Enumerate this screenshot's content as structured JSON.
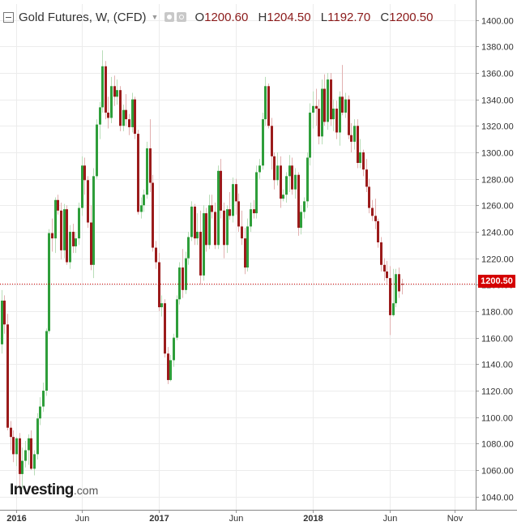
{
  "header": {
    "title": "Gold Futures, W, (CFD)",
    "open_label": "O",
    "open": "1200.60",
    "high_label": "H",
    "high": "1204.50",
    "low_label": "L",
    "low": "1192.70",
    "close_label": "C",
    "close": "1200.50"
  },
  "logo": {
    "main": "Investing",
    "suffix": ".com"
  },
  "last_price": "1200.50",
  "colors": {
    "up": "#2e9e3a",
    "down": "#9b1b1b",
    "grid": "#ececec",
    "last_price": "#d40000"
  },
  "chart_data": {
    "type": "candlestick",
    "interval": "weekly",
    "title": "Gold Futures, W, (CFD)",
    "y_ticks": [
      "1040.00",
      "1060.00",
      "1080.00",
      "1100.00",
      "1120.00",
      "1140.00",
      "1160.00",
      "1180.00",
      "1200.00",
      "1220.00",
      "1240.00",
      "1260.00",
      "1280.00",
      "1300.00",
      "1320.00",
      "1340.00",
      "1360.00",
      "1380.00",
      "1400.00"
    ],
    "y_tick_values": [
      1040,
      1060,
      1080,
      1100,
      1120,
      1140,
      1160,
      1180,
      1200,
      1220,
      1240,
      1260,
      1280,
      1300,
      1320,
      1340,
      1360,
      1380,
      1400
    ],
    "ylim": [
      1030,
      1412
    ],
    "x_ticks": [
      "2016",
      "Jun",
      "2017",
      "Jun",
      "2018",
      "Jun",
      "Nov"
    ],
    "x_tick_weeks": [
      5,
      27,
      53,
      79,
      105,
      131,
      153
    ],
    "x_range_weeks": [
      -0.5,
      160
    ],
    "grid": true,
    "last_price": 1200.5,
    "ohlc": [
      [
        1155,
        1196,
        1148,
        1188
      ],
      [
        1188,
        1192,
        1163,
        1170
      ],
      [
        1170,
        1178,
        1090,
        1092
      ],
      [
        1092,
        1097,
        1075,
        1085
      ],
      [
        1085,
        1090,
        1066,
        1072
      ],
      [
        1072,
        1085,
        1063,
        1084
      ],
      [
        1084,
        1088,
        1048,
        1057
      ],
      [
        1057,
        1077,
        1046,
        1067
      ],
      [
        1067,
        1082,
        1062,
        1075
      ],
      [
        1075,
        1087,
        1064,
        1084
      ],
      [
        1084,
        1090,
        1060,
        1061
      ],
      [
        1061,
        1075,
        1056,
        1072
      ],
      [
        1072,
        1103,
        1068,
        1099
      ],
      [
        1099,
        1115,
        1094,
        1108
      ],
      [
        1108,
        1126,
        1104,
        1120
      ],
      [
        1120,
        1167,
        1116,
        1165
      ],
      [
        1165,
        1242,
        1163,
        1239
      ],
      [
        1239,
        1250,
        1225,
        1235
      ],
      [
        1235,
        1266,
        1224,
        1264
      ],
      [
        1264,
        1268,
        1253,
        1256
      ],
      [
        1256,
        1262,
        1219,
        1226
      ],
      [
        1226,
        1261,
        1220,
        1257
      ],
      [
        1257,
        1260,
        1215,
        1217
      ],
      [
        1217,
        1245,
        1212,
        1240
      ],
      [
        1240,
        1246,
        1224,
        1229
      ],
      [
        1229,
        1240,
        1224,
        1235
      ],
      [
        1235,
        1262,
        1230,
        1258
      ],
      [
        1258,
        1297,
        1252,
        1290
      ],
      [
        1290,
        1296,
        1268,
        1279
      ],
      [
        1279,
        1282,
        1243,
        1247
      ],
      [
        1247,
        1260,
        1211,
        1215
      ],
      [
        1215,
        1288,
        1205,
        1282
      ],
      [
        1282,
        1325,
        1280,
        1321
      ],
      [
        1321,
        1338,
        1310,
        1334
      ],
      [
        1334,
        1377,
        1330,
        1365
      ],
      [
        1365,
        1369,
        1325,
        1330
      ],
      [
        1330,
        1342,
        1318,
        1326
      ],
      [
        1326,
        1357,
        1322,
        1350
      ],
      [
        1350,
        1358,
        1335,
        1342
      ],
      [
        1342,
        1355,
        1336,
        1347
      ],
      [
        1347,
        1350,
        1316,
        1320
      ],
      [
        1320,
        1336,
        1316,
        1332
      ],
      [
        1332,
        1344,
        1320,
        1325
      ],
      [
        1325,
        1329,
        1313,
        1319
      ],
      [
        1319,
        1345,
        1315,
        1340
      ],
      [
        1340,
        1342,
        1310,
        1314
      ],
      [
        1314,
        1317,
        1253,
        1255
      ],
      [
        1255,
        1266,
        1250,
        1260
      ],
      [
        1260,
        1272,
        1255,
        1268
      ],
      [
        1268,
        1308,
        1265,
        1303
      ],
      [
        1303,
        1325,
        1270,
        1277
      ],
      [
        1277,
        1283,
        1225,
        1228
      ],
      [
        1228,
        1233,
        1212,
        1217
      ],
      [
        1217,
        1224,
        1180,
        1183
      ],
      [
        1183,
        1192,
        1176,
        1186
      ],
      [
        1186,
        1189,
        1145,
        1148
      ],
      [
        1148,
        1153,
        1125,
        1128
      ],
      [
        1128,
        1147,
        1127,
        1143
      ],
      [
        1143,
        1163,
        1138,
        1160
      ],
      [
        1160,
        1192,
        1158,
        1189
      ],
      [
        1189,
        1217,
        1185,
        1213
      ],
      [
        1213,
        1227,
        1190,
        1196
      ],
      [
        1196,
        1225,
        1193,
        1220
      ],
      [
        1220,
        1240,
        1215,
        1236
      ],
      [
        1236,
        1263,
        1233,
        1259
      ],
      [
        1259,
        1261,
        1230,
        1235
      ],
      [
        1235,
        1254,
        1230,
        1240
      ],
      [
        1240,
        1256,
        1200,
        1207
      ],
      [
        1207,
        1260,
        1203,
        1254
      ],
      [
        1254,
        1258,
        1225,
        1230
      ],
      [
        1230,
        1268,
        1227,
        1260
      ],
      [
        1260,
        1268,
        1250,
        1255
      ],
      [
        1255,
        1262,
        1227,
        1230
      ],
      [
        1230,
        1290,
        1227,
        1286
      ],
      [
        1286,
        1295,
        1250,
        1256
      ],
      [
        1256,
        1262,
        1220,
        1230
      ],
      [
        1230,
        1260,
        1224,
        1257
      ],
      [
        1257,
        1270,
        1249,
        1252
      ],
      [
        1252,
        1281,
        1247,
        1276
      ],
      [
        1276,
        1280,
        1253,
        1263
      ],
      [
        1263,
        1269,
        1240,
        1244
      ],
      [
        1244,
        1256,
        1230,
        1235
      ],
      [
        1235,
        1243,
        1208,
        1213
      ],
      [
        1213,
        1250,
        1210,
        1244
      ],
      [
        1244,
        1262,
        1240,
        1257
      ],
      [
        1257,
        1264,
        1250,
        1254
      ],
      [
        1254,
        1290,
        1250,
        1285
      ],
      [
        1285,
        1295,
        1280,
        1290
      ],
      [
        1290,
        1330,
        1287,
        1325
      ],
      [
        1325,
        1357,
        1320,
        1350
      ],
      [
        1350,
        1352,
        1318,
        1320
      ],
      [
        1320,
        1326,
        1287,
        1297
      ],
      [
        1297,
        1300,
        1272,
        1279
      ],
      [
        1279,
        1300,
        1275,
        1290
      ],
      [
        1290,
        1297,
        1258,
        1265
      ],
      [
        1265,
        1272,
        1263,
        1268
      ],
      [
        1268,
        1285,
        1262,
        1282
      ],
      [
        1282,
        1298,
        1270,
        1290
      ],
      [
        1290,
        1296,
        1268,
        1272
      ],
      [
        1272,
        1288,
        1265,
        1283
      ],
      [
        1283,
        1285,
        1237,
        1243
      ],
      [
        1243,
        1260,
        1238,
        1255
      ],
      [
        1255,
        1266,
        1250,
        1263
      ],
      [
        1263,
        1300,
        1258,
        1296
      ],
      [
        1296,
        1337,
        1290,
        1330
      ],
      [
        1330,
        1346,
        1318,
        1335
      ],
      [
        1335,
        1348,
        1320,
        1333
      ],
      [
        1333,
        1340,
        1306,
        1312
      ],
      [
        1312,
        1355,
        1306,
        1348
      ],
      [
        1348,
        1359,
        1320,
        1323
      ],
      [
        1323,
        1360,
        1317,
        1355
      ],
      [
        1355,
        1360,
        1320,
        1325
      ],
      [
        1325,
        1340,
        1316,
        1333
      ],
      [
        1333,
        1339,
        1310,
        1315
      ],
      [
        1315,
        1346,
        1305,
        1342
      ],
      [
        1342,
        1366,
        1328,
        1330
      ],
      [
        1330,
        1345,
        1326,
        1340
      ],
      [
        1340,
        1343,
        1310,
        1313
      ],
      [
        1313,
        1322,
        1300,
        1308
      ],
      [
        1308,
        1325,
        1302,
        1320
      ],
      [
        1320,
        1325,
        1288,
        1292
      ],
      [
        1292,
        1310,
        1288,
        1300
      ],
      [
        1300,
        1302,
        1282,
        1287
      ],
      [
        1287,
        1295,
        1270,
        1274
      ],
      [
        1274,
        1280,
        1254,
        1258
      ],
      [
        1258,
        1264,
        1248,
        1252
      ],
      [
        1252,
        1265,
        1242,
        1248
      ],
      [
        1248,
        1250,
        1228,
        1232
      ],
      [
        1232,
        1236,
        1210,
        1215
      ],
      [
        1215,
        1220,
        1203,
        1210
      ],
      [
        1210,
        1218,
        1201,
        1205
      ],
      [
        1205,
        1214,
        1162,
        1177
      ],
      [
        1177,
        1212,
        1176,
        1186
      ],
      [
        1186,
        1212,
        1183,
        1208
      ],
      [
        1208,
        1213,
        1190,
        1195
      ],
      [
        1200.6,
        1204.5,
        1192.7,
        1200.5
      ]
    ]
  }
}
